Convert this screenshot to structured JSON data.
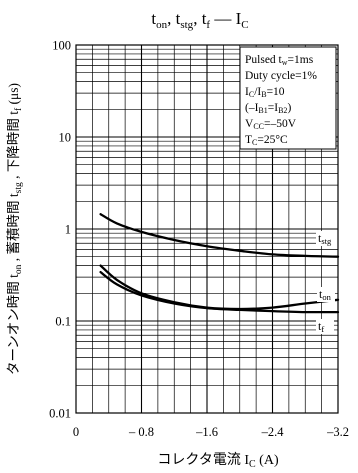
{
  "chart_data": {
    "type": "line",
    "title_parts": {
      "t1": "t",
      "s1": "on",
      "sep1": ", ",
      "t2": "t",
      "s2": "stg",
      "sep2": ", ",
      "t3": "t",
      "s3": "f",
      "dash": " — ",
      "t4": "I",
      "s4": "C"
    },
    "xlabel": {
      "main": "コレクタ電流 I",
      "sub": "C",
      "unit": " (A)"
    },
    "ylabel": {
      "p1": "ターンオン時間 t",
      "s1": "on",
      "p2": " , 蓄積時間 t",
      "s2": "stg",
      "p3": " , 下降時間 t",
      "s3": "f",
      "p4": " (μs)"
    },
    "x_ticks": [
      "0",
      "– 0.8",
      "–1.6",
      "–2.4",
      "–3.2"
    ],
    "x_tick_values": [
      0,
      -0.8,
      -1.6,
      -2.4,
      -3.2
    ],
    "y_ticks": [
      "100",
      "10",
      "1",
      "0.1",
      "0.01"
    ],
    "y_tick_values": [
      100,
      10,
      1,
      0.1,
      0.01
    ],
    "xlim": [
      0,
      -3.2
    ],
    "ylim": [
      0.01,
      100
    ],
    "y_scale": "log",
    "grid": true,
    "conditions": [
      {
        "pre": "Pulsed t",
        "sub": "w",
        "post": "=1ms"
      },
      {
        "pre": "Duty cycle=1%",
        "sub": "",
        "post": ""
      },
      {
        "pre": "I",
        "sub": "C",
        "post": "/I",
        "sub2": "B",
        "post2": "=10"
      },
      {
        "pre": "(–I",
        "sub": "B1",
        "post": "=I",
        "sub2": "B2",
        "post2": ")"
      },
      {
        "pre": "V",
        "sub": "CC",
        "post": "=–50V"
      },
      {
        "pre": "T",
        "sub": "C",
        "post": "=25°C"
      }
    ],
    "series": [
      {
        "name": "tstg",
        "label_main": "t",
        "label_sub": "stg",
        "x": [
          -0.3,
          -0.5,
          -0.8,
          -1.2,
          -1.6,
          -2.0,
          -2.4,
          -2.8,
          -3.2
        ],
        "y": [
          1.45,
          1.15,
          0.93,
          0.76,
          0.65,
          0.58,
          0.53,
          0.51,
          0.5
        ]
      },
      {
        "name": "ton",
        "label_main": "t",
        "label_sub": "on",
        "x": [
          -0.3,
          -0.5,
          -0.8,
          -1.2,
          -1.6,
          -2.0,
          -2.4,
          -2.8,
          -3.2
        ],
        "y": [
          0.4,
          0.28,
          0.2,
          0.16,
          0.14,
          0.135,
          0.14,
          0.155,
          0.17
        ]
      },
      {
        "name": "tf",
        "label_main": "t",
        "label_sub": "f",
        "x": [
          -0.3,
          -0.5,
          -0.8,
          -1.2,
          -1.6,
          -2.0,
          -2.4,
          -2.8,
          -3.2
        ],
        "y": [
          0.34,
          0.25,
          0.19,
          0.155,
          0.138,
          0.132,
          0.128,
          0.125,
          0.125
        ]
      }
    ]
  }
}
